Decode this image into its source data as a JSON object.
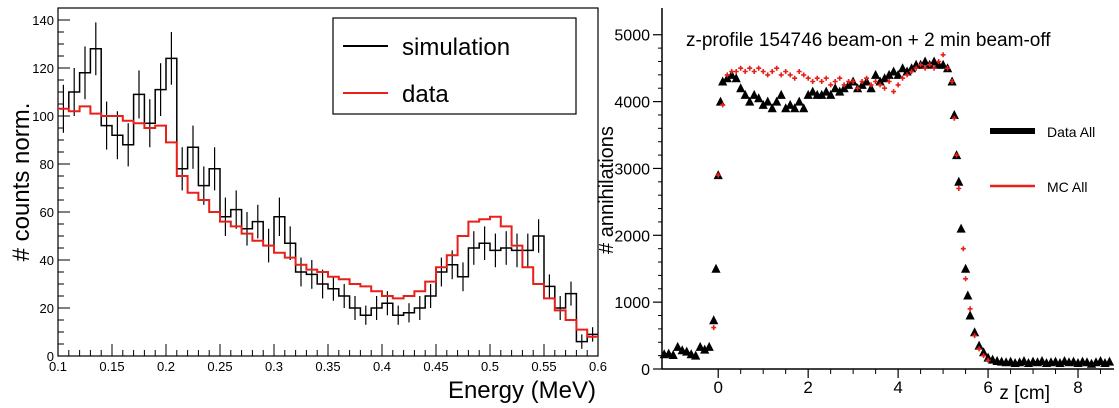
{
  "colors": {
    "simulation": "#000000",
    "data": "#e8201a",
    "frame": "#000000",
    "background": "#ffffff"
  },
  "chart_data": [
    {
      "type": "line",
      "step": true,
      "xlabel": "Energy (MeV)",
      "ylabel": "# counts norm.",
      "xlim": [
        0.1,
        0.6
      ],
      "ylim": [
        0,
        145
      ],
      "x_ticks": [
        "0.1",
        "0.15",
        "0.2",
        "0.25",
        "0.3",
        "0.35",
        "0.4",
        "0.45",
        "0.5",
        "0.55",
        "0.6"
      ],
      "y_ticks": [
        "0",
        "20",
        "40",
        "60",
        "80",
        "100",
        "120",
        "140"
      ],
      "legend": {
        "placement": "top-right",
        "entries": [
          "simulation",
          "data"
        ]
      },
      "x": [
        0.1,
        0.11,
        0.12,
        0.13,
        0.14,
        0.15,
        0.16,
        0.17,
        0.18,
        0.19,
        0.2,
        0.21,
        0.22,
        0.23,
        0.24,
        0.25,
        0.26,
        0.27,
        0.28,
        0.29,
        0.3,
        0.31,
        0.32,
        0.33,
        0.34,
        0.35,
        0.36,
        0.37,
        0.38,
        0.39,
        0.4,
        0.41,
        0.42,
        0.43,
        0.44,
        0.45,
        0.46,
        0.47,
        0.48,
        0.49,
        0.5,
        0.51,
        0.52,
        0.53,
        0.54,
        0.55,
        0.56,
        0.57,
        0.58,
        0.59
      ],
      "series": [
        {
          "name": "simulation",
          "values": [
            103,
            110,
            118,
            128,
            96,
            92,
            88,
            109,
            97,
            111,
            124,
            78,
            87,
            71,
            78,
            58,
            61,
            53,
            56,
            46,
            58,
            47,
            35,
            34,
            30,
            28,
            25,
            20,
            17,
            20,
            22,
            17,
            18,
            20,
            25,
            35,
            38,
            33,
            45,
            47,
            44,
            45,
            44,
            44,
            50,
            29,
            20,
            26,
            6,
            9
          ],
          "errors": [
            10,
            10,
            11,
            11,
            10,
            10,
            9,
            10,
            10,
            11,
            11,
            9,
            9,
            8,
            9,
            8,
            8,
            7,
            7,
            7,
            8,
            7,
            6,
            6,
            6,
            5,
            5,
            5,
            4,
            5,
            5,
            4,
            4,
            5,
            5,
            6,
            6,
            6,
            7,
            7,
            7,
            7,
            7,
            7,
            7,
            5,
            5,
            5,
            3,
            3
          ]
        },
        {
          "name": "data",
          "values": [
            103,
            102,
            104,
            101,
            100,
            100,
            98,
            97,
            95,
            96,
            89,
            75,
            68,
            65,
            60,
            56,
            54,
            51,
            48,
            46,
            43,
            41,
            38,
            36,
            35,
            33,
            32,
            30,
            29,
            27,
            25,
            24,
            25,
            27,
            31,
            37,
            42,
            50,
            56,
            57,
            58,
            54,
            46,
            37,
            30,
            24,
            19,
            15,
            11,
            8
          ]
        }
      ]
    },
    {
      "type": "scatter",
      "title": "z-profile 154746 beam-on + 2 min beam-off",
      "xlabel": "z [cm]",
      "ylabel": "# annihilations",
      "xlim": [
        -1.25,
        8.8
      ],
      "ylim": [
        0,
        5400
      ],
      "x_ticks": [
        "0",
        "2",
        "4",
        "6",
        "8"
      ],
      "y_ticks": [
        "0",
        "1000",
        "2000",
        "3000",
        "4000",
        "5000"
      ],
      "legend": {
        "placement": "right",
        "entries": [
          "Data All",
          "MC All"
        ]
      },
      "series": [
        {
          "name": "Data All",
          "marker": "triangle",
          "points": [
            [
              -1.2,
              220
            ],
            [
              -1.1,
              230
            ],
            [
              -1.0,
              210
            ],
            [
              -0.9,
              330
            ],
            [
              -0.8,
              280
            ],
            [
              -0.7,
              260
            ],
            [
              -0.6,
              220
            ],
            [
              -0.5,
              200
            ],
            [
              -0.4,
              330
            ],
            [
              -0.3,
              290
            ],
            [
              -0.2,
              330
            ],
            [
              -0.1,
              730
            ],
            [
              -0.05,
              1500
            ],
            [
              0.0,
              2900
            ],
            [
              0.05,
              4000
            ],
            [
              0.1,
              4300
            ],
            [
              0.2,
              4350
            ],
            [
              0.3,
              4400
            ],
            [
              0.4,
              4350
            ],
            [
              0.5,
              4200
            ],
            [
              0.6,
              4100
            ],
            [
              0.7,
              4000
            ],
            [
              0.8,
              4100
            ],
            [
              0.9,
              4050
            ],
            [
              1.0,
              3950
            ],
            [
              1.1,
              4000
            ],
            [
              1.2,
              3900
            ],
            [
              1.3,
              4000
            ],
            [
              1.4,
              4100
            ],
            [
              1.5,
              3900
            ],
            [
              1.6,
              3950
            ],
            [
              1.7,
              3900
            ],
            [
              1.8,
              4000
            ],
            [
              1.9,
              3900
            ],
            [
              2.0,
              4100
            ],
            [
              2.1,
              4150
            ],
            [
              2.2,
              4100
            ],
            [
              2.3,
              4100
            ],
            [
              2.4,
              4150
            ],
            [
              2.5,
              4100
            ],
            [
              2.6,
              4200
            ],
            [
              2.7,
              4150
            ],
            [
              2.8,
              4200
            ],
            [
              2.9,
              4250
            ],
            [
              3.0,
              4300
            ],
            [
              3.1,
              4200
            ],
            [
              3.2,
              4250
            ],
            [
              3.3,
              4300
            ],
            [
              3.4,
              4200
            ],
            [
              3.5,
              4400
            ],
            [
              3.6,
              4300
            ],
            [
              3.7,
              4350
            ],
            [
              3.8,
              4400
            ],
            [
              3.9,
              4450
            ],
            [
              4.0,
              4400
            ],
            [
              4.1,
              4500
            ],
            [
              4.2,
              4450
            ],
            [
              4.3,
              4500
            ],
            [
              4.4,
              4550
            ],
            [
              4.5,
              4550
            ],
            [
              4.6,
              4600
            ],
            [
              4.7,
              4550
            ],
            [
              4.8,
              4600
            ],
            [
              4.9,
              4550
            ],
            [
              5.0,
              4550
            ],
            [
              5.1,
              4500
            ],
            [
              5.2,
              4300
            ],
            [
              5.25,
              3800
            ],
            [
              5.3,
              3200
            ],
            [
              5.35,
              2800
            ],
            [
              5.4,
              2100
            ],
            [
              5.5,
              1500
            ],
            [
              5.55,
              1100
            ],
            [
              5.6,
              800
            ],
            [
              5.7,
              550
            ],
            [
              5.8,
              350
            ],
            [
              5.9,
              250
            ],
            [
              6.0,
              170
            ],
            [
              6.1,
              140
            ],
            [
              6.2,
              120
            ],
            [
              6.3,
              110
            ],
            [
              6.4,
              100
            ],
            [
              6.5,
              110
            ],
            [
              6.6,
              90
            ],
            [
              6.7,
              100
            ],
            [
              6.8,
              120
            ],
            [
              6.9,
              90
            ],
            [
              7.0,
              110
            ],
            [
              7.1,
              100
            ],
            [
              7.2,
              120
            ],
            [
              7.3,
              90
            ],
            [
              7.4,
              100
            ],
            [
              7.5,
              110
            ],
            [
              7.6,
              90
            ],
            [
              7.7,
              120
            ],
            [
              7.8,
              100
            ],
            [
              7.9,
              110
            ],
            [
              8.0,
              90
            ],
            [
              8.1,
              110
            ],
            [
              8.2,
              100
            ],
            [
              8.3,
              80
            ],
            [
              8.4,
              100
            ],
            [
              8.5,
              120
            ],
            [
              8.6,
              90
            ],
            [
              8.7,
              110
            ]
          ]
        },
        {
          "name": "MC All",
          "marker": "cross",
          "points": [
            [
              -0.1,
              620
            ],
            [
              0.0,
              2900
            ],
            [
              0.1,
              3950
            ],
            [
              0.2,
              4400
            ],
            [
              0.3,
              4450
            ],
            [
              0.4,
              4450
            ],
            [
              0.5,
              4500
            ],
            [
              0.6,
              4450
            ],
            [
              0.7,
              4500
            ],
            [
              0.8,
              4450
            ],
            [
              0.9,
              4500
            ],
            [
              1.0,
              4450
            ],
            [
              1.1,
              4400
            ],
            [
              1.2,
              4450
            ],
            [
              1.3,
              4500
            ],
            [
              1.4,
              4400
            ],
            [
              1.5,
              4450
            ],
            [
              1.6,
              4400
            ],
            [
              1.7,
              4350
            ],
            [
              1.8,
              4450
            ],
            [
              1.9,
              4400
            ],
            [
              2.0,
              4350
            ],
            [
              2.1,
              4300
            ],
            [
              2.2,
              4350
            ],
            [
              2.3,
              4300
            ],
            [
              2.4,
              4350
            ],
            [
              2.5,
              4250
            ],
            [
              2.6,
              4300
            ],
            [
              2.7,
              4350
            ],
            [
              2.8,
              4250
            ],
            [
              2.9,
              4300
            ],
            [
              3.0,
              4300
            ],
            [
              3.1,
              4200
            ],
            [
              3.2,
              4300
            ],
            [
              3.3,
              4350
            ],
            [
              3.4,
              4250
            ],
            [
              3.5,
              4300
            ],
            [
              3.6,
              4250
            ],
            [
              3.7,
              4200
            ],
            [
              3.8,
              4300
            ],
            [
              3.9,
              4150
            ],
            [
              4.0,
              4250
            ],
            [
              4.1,
              4350
            ],
            [
              4.2,
              4400
            ],
            [
              4.3,
              4450
            ],
            [
              4.4,
              4500
            ],
            [
              4.5,
              4550
            ],
            [
              4.6,
              4500
            ],
            [
              4.7,
              4550
            ],
            [
              4.8,
              4500
            ],
            [
              4.9,
              4600
            ],
            [
              5.0,
              4700
            ],
            [
              5.1,
              4500
            ],
            [
              5.2,
              4300
            ],
            [
              5.25,
              3750
            ],
            [
              5.3,
              3200
            ],
            [
              5.35,
              2700
            ],
            [
              5.45,
              1800
            ],
            [
              5.5,
              1350
            ],
            [
              5.6,
              900
            ],
            [
              5.7,
              500
            ],
            [
              5.8,
              300
            ],
            [
              5.9,
              200
            ],
            [
              6.0,
              130
            ]
          ]
        }
      ]
    }
  ]
}
